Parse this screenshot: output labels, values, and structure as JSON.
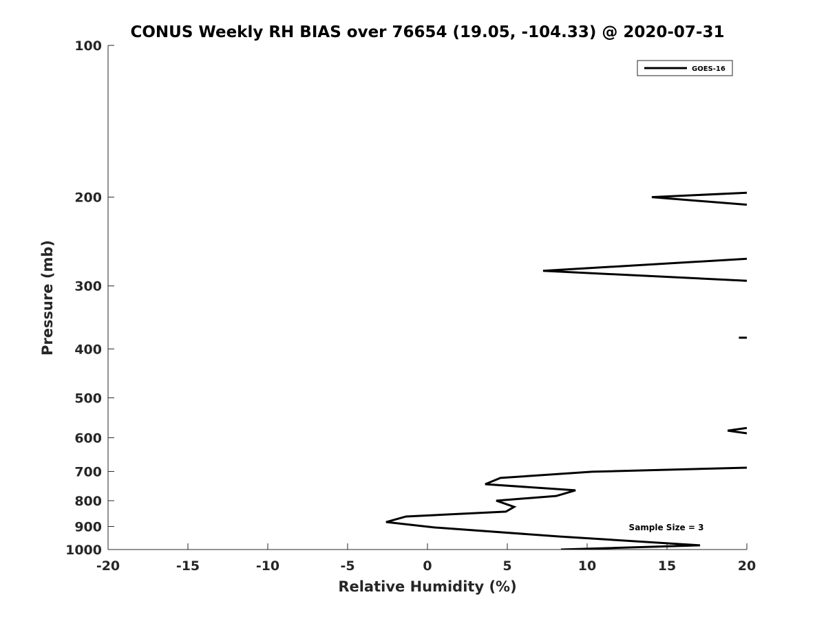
{
  "chart_data": {
    "type": "line",
    "title": "CONUS Weekly RH BIAS over 76654 (19.05, -104.33) @ 2020-07-31",
    "xlabel": "Relative Humidity (%)",
    "ylabel": "Pressure (mb)",
    "xlim": [
      -20,
      20
    ],
    "ylim": [
      100,
      1000
    ],
    "yscale": "log",
    "yreversed": true,
    "xticks": [
      "-20",
      "-15",
      "-10",
      "-5",
      "0",
      "5",
      "10",
      "15",
      "20"
    ],
    "xtick_values": [
      -20,
      -15,
      -10,
      -5,
      0,
      5,
      10,
      15,
      20
    ],
    "yticks": [
      "100",
      "200",
      "300",
      "400",
      "500",
      "600",
      "700",
      "800",
      "900",
      "1000"
    ],
    "ytick_values": [
      100,
      200,
      300,
      400,
      500,
      600,
      700,
      800,
      900,
      1000
    ],
    "grid": false,
    "legend": {
      "placement": "top-right",
      "entries": [
        "GOES-16"
      ]
    },
    "annotation": "Sample Size = 3",
    "line_color": "#000000",
    "series": [
      {
        "name": "GOES-16",
        "segments": [
          [
            [
              20,
              196
            ],
            [
              14.05,
              200
            ],
            [
              20,
              207
            ]
          ],
          [
            [
              20,
              265
            ],
            [
              7.24,
              280
            ],
            [
              20,
              293
            ]
          ],
          [
            [
              19.5,
              380
            ],
            [
              20,
              380
            ]
          ],
          [
            [
              20,
              574
            ],
            [
              18.8,
              581
            ],
            [
              20,
              588
            ]
          ],
          [
            [
              20,
              688
            ],
            [
              10.3,
              701
            ],
            [
              4.57,
              721
            ],
            [
              3.62,
              742
            ],
            [
              9.27,
              763
            ],
            [
              8.06,
              783
            ],
            [
              4.31,
              800
            ],
            [
              5.43,
              823
            ],
            [
              4.91,
              841
            ],
            [
              -1.34,
              860
            ],
            [
              -2.59,
              882
            ],
            [
              0.43,
              904
            ],
            [
              8.23,
              942
            ],
            [
              17.07,
              981
            ],
            [
              8.36,
              1000
            ]
          ]
        ]
      }
    ]
  }
}
